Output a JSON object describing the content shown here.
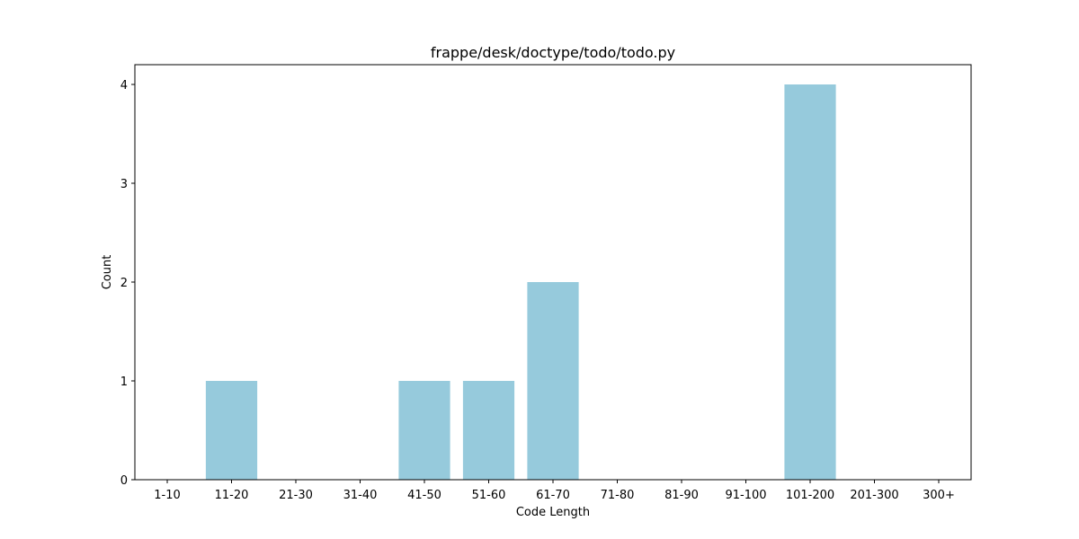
{
  "chart_data": {
    "type": "bar",
    "title": "frappe/desk/doctype/todo/todo.py",
    "xlabel": "Code Length",
    "ylabel": "Count",
    "categories": [
      "1-10",
      "11-20",
      "21-30",
      "31-40",
      "41-50",
      "51-60",
      "61-70",
      "71-80",
      "81-90",
      "91-100",
      "101-200",
      "201-300",
      "300+"
    ],
    "values": [
      0,
      1,
      0,
      0,
      1,
      1,
      2,
      0,
      0,
      0,
      4,
      0,
      0
    ],
    "yticks": [
      "0",
      "1",
      "2",
      "3",
      "4"
    ],
    "ylim": [
      0,
      4.2
    ],
    "grid": false,
    "bar_color": "#96cadc"
  }
}
